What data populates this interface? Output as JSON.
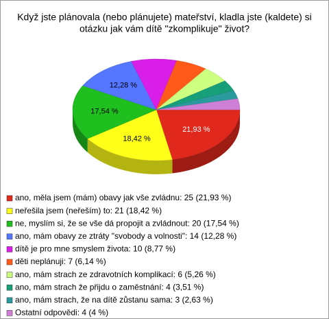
{
  "chart_data": {
    "type": "pie3d",
    "title": [
      "Když jste plánovala (nebo plánujete) mateřství, kladla jste (kaldete) si",
      "otázku jak vám dítě \"zkomplikuje\" život?"
    ],
    "categories": [
      "ano, měla jsem (mám) obavy jak vše zvládnu: 25 (21,93 %)",
      "neřešila jsem (neřeším) to: 21 (18,42 %)",
      "ne, myslím si, že se vše dá propojit a zvládnout: 20 (17,54 %)",
      "ano, mám obavy ze ztráty \"svobody a volnosti\": 14 (12,28 %)",
      "dítě je pro mne smyslem života: 10 (8,77 %)",
      "děti neplánuji: 7 (6,14 %)",
      "ano, mám strach ze zdravotních komplikací: 6 (5,26 %)",
      "ano, mám strach že přijdu o zaměstnání: 4 (3,51 %)",
      "ano, mám strach, že na dítě zůstanu sama: 3 (2,63 %)",
      "Ostatní odpovědi: 4 (4 %)"
    ],
    "values": [
      25,
      21,
      20,
      14,
      10,
      7,
      6,
      4,
      3,
      4
    ],
    "value_labels": [
      "21,93 %",
      "18,42 %",
      "17,54 %",
      "12,28 %",
      null,
      null,
      null,
      null,
      null,
      null
    ],
    "colors": [
      "#e0281c",
      "#ffff1a",
      "#1fbf1f",
      "#5577ff",
      "#d91ee8",
      "#ff5a1a",
      "#ccff80",
      "#179f7a",
      "#2a9a9e",
      "#d07fd6"
    ]
  }
}
